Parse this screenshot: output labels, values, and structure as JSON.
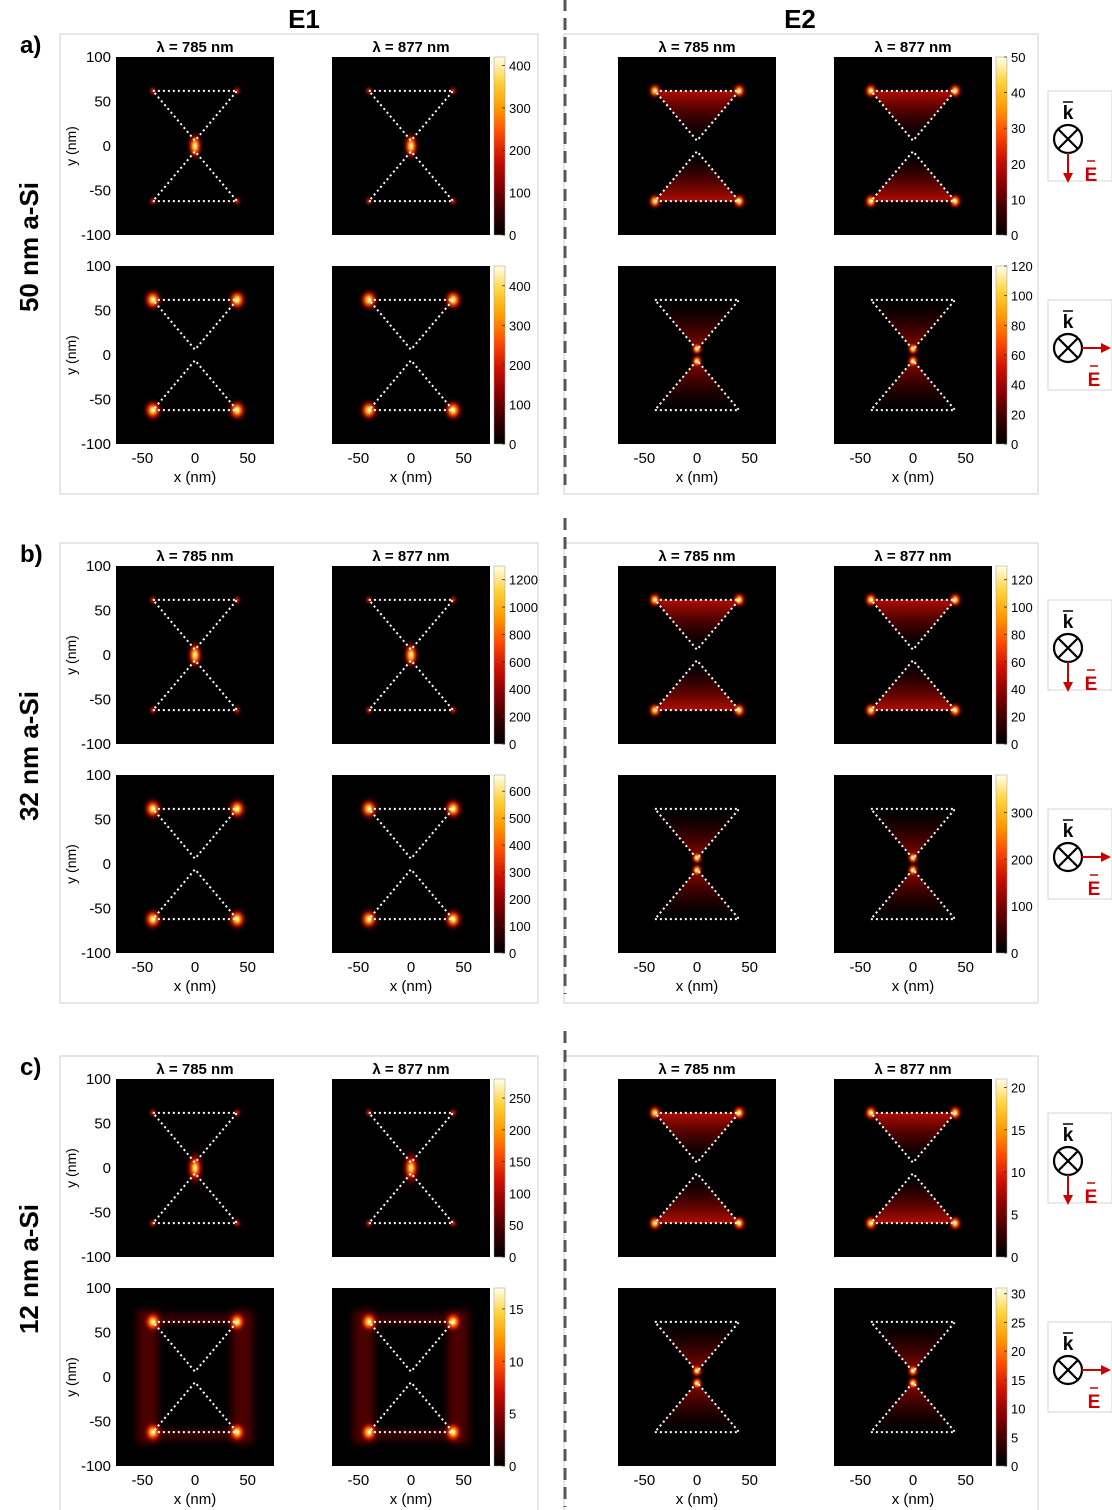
{
  "colors": {
    "cmap_stops": [
      "#000000",
      "#3a0000",
      "#8a0000",
      "#d01000",
      "#ff4a00",
      "#ff9a00",
      "#ffd23a",
      "#ffffe8"
    ],
    "polarization_arrow": "#cc0000",
    "divider": "#555555"
  },
  "column_headers": [
    "E1",
    "E2"
  ],
  "polarization_labels": {
    "k": "k",
    "e": "E"
  },
  "chart_data": [
    {
      "type": "heatmap",
      "row_label": "a)",
      "material": "50 nm a-Si",
      "ylabel": "y (nm)",
      "xlabel": "x (nm)",
      "xticks": [
        -50,
        0,
        50
      ],
      "yticks": [
        100,
        50,
        0,
        -50,
        -100
      ],
      "xlim": [
        -75,
        75
      ],
      "ylim": [
        -100,
        100
      ],
      "panel_titles": [
        "λ = 785 nm",
        "λ = 877 nm",
        "λ = 785 nm",
        "λ = 877 nm"
      ],
      "colorbars": [
        {
          "group": "E1",
          "polarization": "vertical",
          "ticks": [
            400,
            300,
            200,
            100,
            0
          ],
          "max": 420
        },
        {
          "group": "E2",
          "polarization": "vertical",
          "ticks": [
            50,
            40,
            30,
            20,
            10,
            0
          ],
          "max": 50
        },
        {
          "group": "E1",
          "polarization": "horizontal",
          "ticks": [
            400,
            300,
            200,
            100,
            0
          ],
          "max": 450
        },
        {
          "group": "E2",
          "polarization": "horizontal",
          "ticks": [
            120,
            100,
            80,
            60,
            40,
            20,
            0
          ],
          "max": 120
        }
      ]
    },
    {
      "type": "heatmap",
      "row_label": "b)",
      "material": "32 nm a-Si",
      "ylabel": "y (nm)",
      "xlabel": "x (nm)",
      "xticks": [
        -50,
        0,
        50
      ],
      "yticks": [
        100,
        50,
        0,
        -50,
        -100
      ],
      "xlim": [
        -75,
        75
      ],
      "ylim": [
        -100,
        100
      ],
      "panel_titles": [
        "λ = 785 nm",
        "λ = 877 nm",
        "λ = 785 nm",
        "λ = 877 nm"
      ],
      "colorbars": [
        {
          "group": "E1",
          "polarization": "vertical",
          "ticks": [
            1200,
            1000,
            800,
            600,
            400,
            200,
            0
          ],
          "max": 1300
        },
        {
          "group": "E2",
          "polarization": "vertical",
          "ticks": [
            120,
            100,
            80,
            60,
            40,
            20,
            0
          ],
          "max": 130
        },
        {
          "group": "E1",
          "polarization": "horizontal",
          "ticks": [
            600,
            500,
            400,
            300,
            200,
            100,
            0
          ],
          "max": 660
        },
        {
          "group": "E2",
          "polarization": "horizontal",
          "ticks": [
            300,
            200,
            100,
            0
          ],
          "max": 380
        }
      ]
    },
    {
      "type": "heatmap",
      "row_label": "c)",
      "material": "12 nm a-Si",
      "ylabel": "y (nm)",
      "xlabel": "x (nm)",
      "xticks": [
        -50,
        0,
        50
      ],
      "yticks": [
        100,
        50,
        0,
        -50,
        -100
      ],
      "xlim": [
        -75,
        75
      ],
      "ylim": [
        -100,
        100
      ],
      "panel_titles": [
        "λ = 785 nm",
        "λ = 877 nm",
        "λ = 785 nm",
        "λ = 877 nm"
      ],
      "colorbars": [
        {
          "group": "E1",
          "polarization": "vertical",
          "ticks": [
            250,
            200,
            150,
            100,
            50,
            0
          ],
          "max": 280
        },
        {
          "group": "E2",
          "polarization": "vertical",
          "ticks": [
            20,
            15,
            10,
            5,
            0
          ],
          "max": 21
        },
        {
          "group": "E1",
          "polarization": "horizontal",
          "ticks": [
            15,
            10,
            5,
            0
          ],
          "max": 17
        },
        {
          "group": "E2",
          "polarization": "horizontal",
          "ticks": [
            30,
            25,
            20,
            15,
            10,
            5,
            0
          ],
          "max": 31
        }
      ]
    }
  ]
}
